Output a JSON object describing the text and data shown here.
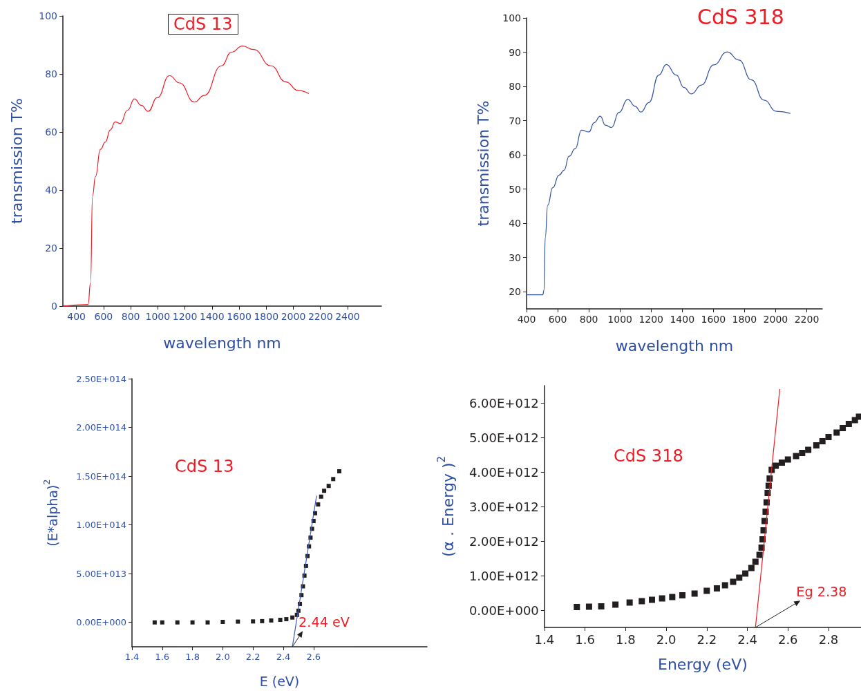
{
  "chart_data": [
    {
      "type": "line",
      "title": "CdS 13",
      "xlabel": "wavelength nm",
      "ylabel": "transmission T%",
      "xlim": [
        300,
        2650
      ],
      "xticks": [
        400,
        600,
        800,
        1000,
        1200,
        1400,
        1600,
        1800,
        2000,
        2200,
        2400
      ],
      "ylim": [
        0,
        100
      ],
      "yticks": [
        0,
        20,
        40,
        60,
        80,
        100
      ],
      "series": [
        {
          "color": "#ee1c24",
          "x": [
            300,
            486,
            504,
            519,
            540,
            577,
            613,
            650,
            686,
            723,
            777,
            828,
            878,
            929,
            996,
            1087,
            1160,
            1270,
            1343,
            1470,
            1543,
            1625,
            1707,
            1835,
            1944,
            2035,
            2114
          ],
          "values": [
            0,
            0.6,
            8,
            38,
            44.6,
            54,
            56.5,
            60.7,
            63.5,
            62.9,
            67.5,
            71.4,
            69.2,
            67.1,
            71.8,
            79.4,
            76.9,
            70.3,
            72.6,
            82.8,
            87.5,
            89.6,
            88.4,
            82.8,
            77.3,
            74.3,
            73.2
          ]
        }
      ]
    },
    {
      "type": "line",
      "title": "CdS 318",
      "xlabel": "wavelength nm",
      "ylabel": "transmission T%",
      "xlim": [
        400,
        2300
      ],
      "xticks": [
        400,
        600,
        800,
        1000,
        1200,
        1400,
        1600,
        1800,
        2000,
        2200
      ],
      "ylim": [
        15,
        100
      ],
      "yticks": [
        20,
        30,
        40,
        50,
        60,
        70,
        80,
        90,
        100
      ],
      "series": [
        {
          "color": "#2e4fa3",
          "x": [
            400,
            504,
            512,
            520,
            536,
            568,
            609,
            641,
            673,
            713,
            753,
            801,
            834,
            874,
            906,
            946,
            994,
            1050,
            1098,
            1135,
            1186,
            1250,
            1298,
            1362,
            1411,
            1459,
            1523,
            1603,
            1689,
            1764,
            1845,
            1925,
            2006,
            2095
          ],
          "values": [
            19.1,
            19.1,
            20.4,
            35.8,
            45.3,
            50.4,
            54.1,
            55.5,
            59.6,
            61.8,
            67.2,
            66.7,
            69.4,
            71.3,
            68.7,
            68,
            72.4,
            76.2,
            74.2,
            72.5,
            75.3,
            83.3,
            86.4,
            83.3,
            79.7,
            77.8,
            80.4,
            86.3,
            90.1,
            87.7,
            81.9,
            76,
            72.7,
            72.1
          ]
        }
      ]
    },
    {
      "type": "scatter",
      "title": "CdS 13",
      "xlabel": "E (eV)",
      "ylabel": "(E*alpha)$^{2}$",
      "xlim": [
        1.4,
        3.35
      ],
      "xticks": [
        1.4,
        1.6,
        1.8,
        {
          "value": 2,
          "label": "2.0"
        },
        2.2,
        2.4,
        2.6
      ],
      "ylim": [
        -25000000000000.0,
        250000000000000.0
      ],
      "yticks": [
        {
          "value": 0,
          "label": "0.00E+000"
        },
        {
          "value": 50000000000000.0,
          "label": "5.00E+013"
        },
        {
          "value": 100000000000000.0,
          "label": "1.00E+014"
        },
        {
          "value": 150000000000000.0,
          "label": "1.50E+014"
        },
        {
          "value": 200000000000000.0,
          "label": "2.00E+014"
        },
        {
          "value": 250000000000000.0,
          "label": "2.50E+014"
        }
      ],
      "annotations": [
        "2.44 eV"
      ],
      "series": [
        {
          "color": "#231f20",
          "marker": "square",
          "x": [
            1.55,
            1.6,
            1.7,
            1.8,
            1.9,
            2.0,
            2.1,
            2.2,
            2.26,
            2.32,
            2.38,
            2.42,
            2.46,
            2.49,
            2.5,
            2.51,
            2.52,
            2.53,
            2.54,
            2.55,
            2.56,
            2.57,
            2.58,
            2.59,
            2.6,
            2.61,
            2.63,
            2.65,
            2.67,
            2.7,
            2.73,
            2.77
          ],
          "values": [
            0,
            0,
            0,
            0,
            0,
            500000000000.0,
            800000000000.0,
            1000000000000.0,
            1300000000000.0,
            2000000000000.0,
            2600000000000.0,
            3300000000000.0,
            5000000000000.0,
            7700000000000.0,
            12000000000000.0,
            19000000000000.0,
            28000000000000.0,
            37000000000000.0,
            48000000000000.0,
            58000000000000.0,
            68000000000000.0,
            78000000000000.0,
            87000000000000.0,
            96000000000000.0,
            104000000000000.0,
            112000000000000.0,
            121000000000000.0,
            129000000000000.0,
            135000000000000.0,
            140000000000000.0,
            147000000000000.0,
            155000000000000.0
          ]
        },
        {
          "type": "line",
          "color": "#3b5bb5",
          "x": [
            2.46,
            2.62
          ],
          "values": [
            -25000000000000.0,
            130000000000000.0
          ]
        }
      ]
    },
    {
      "type": "scatter",
      "title": "CdS 318",
      "xlabel": "Energy (eV)",
      "ylabel": "(α . Energy )$^{2}$",
      "xlim": [
        1.4,
        2.96
      ],
      "xticks": [
        1.4,
        1.6,
        1.8,
        {
          "value": 2,
          "label": "2.0"
        },
        2.2,
        2.4,
        2.6,
        2.8
      ],
      "ylim": [
        -500000000000.0,
        6500000000000.0
      ],
      "yticks": [
        {
          "value": 0,
          "label": "0.00E+000"
        },
        {
          "value": 1000000000000.0,
          "label": "1.00E+012"
        },
        {
          "value": 2000000000000.0,
          "label": "2.00E+012"
        },
        {
          "value": 3000000000000.0,
          "label": "3.00E+012"
        },
        {
          "value": 4000000000000.0,
          "label": "4.00E+012"
        },
        {
          "value": 5000000000000.0,
          "label": "5.00E+012"
        },
        {
          "value": 6000000000000.0,
          "label": "6.00E+012"
        }
      ],
      "annotations": [
        "Eg 2.38"
      ],
      "series": [
        {
          "color": "#231f20",
          "marker": "square",
          "x": [
            1.56,
            1.62,
            1.68,
            1.75,
            1.82,
            1.88,
            1.93,
            1.98,
            2.03,
            2.08,
            2.14,
            2.2,
            2.25,
            2.29,
            2.33,
            2.36,
            2.39,
            2.42,
            2.44,
            2.46,
            2.47,
            2.475,
            2.48,
            2.485,
            2.49,
            2.495,
            2.5,
            2.505,
            2.51,
            2.52,
            2.54,
            2.57,
            2.6,
            2.64,
            2.67,
            2.7,
            2.74,
            2.77,
            2.8,
            2.84,
            2.87,
            2.9,
            2.93,
            2.95
          ],
          "values": [
            90000000000.0,
            100000000000.0,
            110000000000.0,
            160000000000.0,
            220000000000.0,
            260000000000.0,
            300000000000.0,
            340000000000.0,
            380000000000.0,
            430000000000.0,
            480000000000.0,
            560000000000.0,
            630000000000.0,
            720000000000.0,
            820000000000.0,
            940000000000.0,
            1060000000000.0,
            1220000000000.0,
            1400000000000.0,
            1600000000000.0,
            1810000000000.0,
            2050000000000.0,
            2310000000000.0,
            2580000000000.0,
            2850000000000.0,
            3120000000000.0,
            3390000000000.0,
            3600000000000.0,
            3810000000000.0,
            4060000000000.0,
            4180000000000.0,
            4270000000000.0,
            4360000000000.0,
            4460000000000.0,
            4550000000000.0,
            4640000000000.0,
            4770000000000.0,
            4890000000000.0,
            5010000000000.0,
            5140000000000.0,
            5270000000000.0,
            5390000000000.0,
            5500000000000.0,
            5600000000000.0
          ]
        },
        {
          "type": "line",
          "color": "#ee1c24",
          "x": [
            2.44,
            2.56
          ],
          "values": [
            -500000000000.0,
            6400000000000.0
          ]
        }
      ]
    }
  ]
}
